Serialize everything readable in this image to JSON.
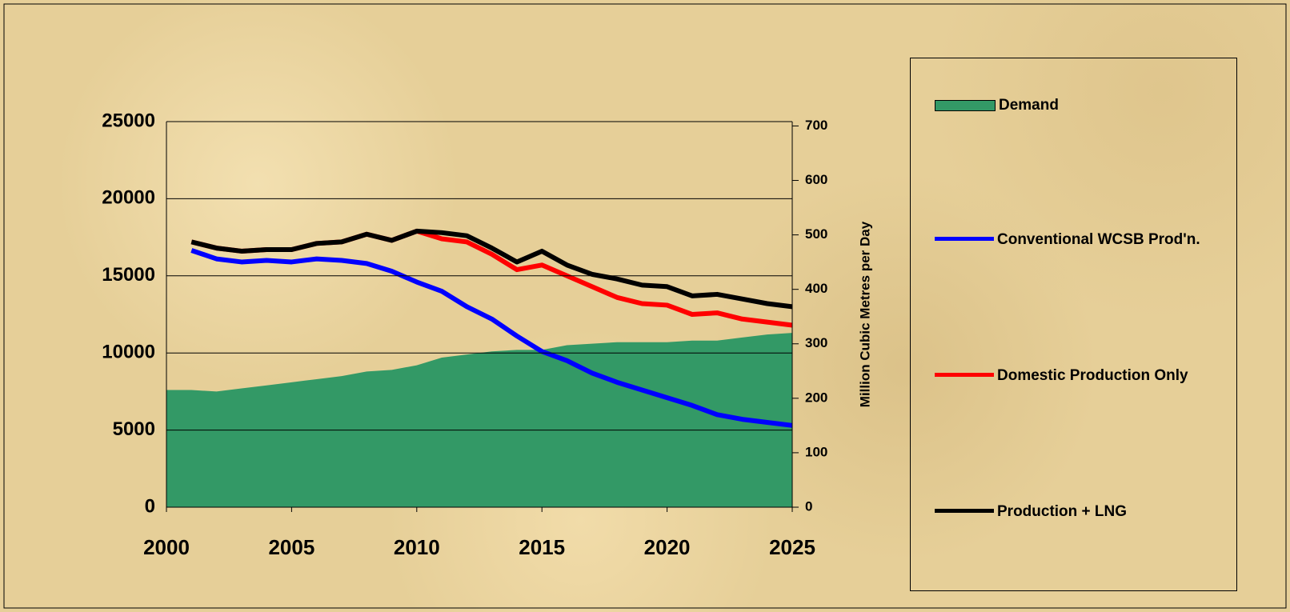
{
  "chart_data": {
    "type": "line",
    "y2_label": "Million Cubic Metres per Day",
    "x": [
      2000,
      2001,
      2002,
      2003,
      2004,
      2005,
      2006,
      2007,
      2008,
      2009,
      2010,
      2011,
      2012,
      2013,
      2014,
      2015,
      2016,
      2017,
      2018,
      2019,
      2020,
      2021,
      2022,
      2023,
      2024,
      2025
    ],
    "xlim": [
      2000,
      2025
    ],
    "xticks": [
      2000,
      2005,
      2010,
      2015,
      2020,
      2025
    ],
    "ylim": [
      0,
      25000
    ],
    "yticks": [
      0,
      5000,
      10000,
      15000,
      20000,
      25000
    ],
    "y2lim": [
      0,
      708
    ],
    "y2ticks": [
      0,
      100,
      200,
      300,
      400,
      500,
      600,
      700
    ],
    "grid": true,
    "legend": "right",
    "series": [
      {
        "name": "Demand",
        "type": "area",
        "color": "#339966",
        "values": [
          7600,
          7600,
          7500,
          7700,
          7900,
          8100,
          8300,
          8500,
          8800,
          8900,
          9200,
          9700,
          9900,
          10100,
          10200,
          10200,
          10500,
          10600,
          10700,
          10700,
          10700,
          10800,
          10800,
          11000,
          11200,
          11300
        ]
      },
      {
        "name": "Conventional WCSB Prod'n.",
        "type": "line",
        "color": "#0000ff",
        "values": [
          null,
          16650,
          16100,
          15900,
          16000,
          15900,
          16100,
          16000,
          15800,
          15300,
          14600,
          14000,
          13000,
          12200,
          11100,
          10100,
          9500,
          8700,
          8100,
          7600,
          7100,
          6600,
          6000,
          5700,
          5500,
          5300
        ]
      },
      {
        "name": "Domestic Production Only",
        "type": "line",
        "color": "#ff0000",
        "values": [
          null,
          17200,
          16800,
          16600,
          16700,
          16700,
          17100,
          17200,
          17700,
          17300,
          17900,
          17400,
          17200,
          16400,
          15400,
          15700,
          15000,
          14300,
          13600,
          13200,
          13100,
          12500,
          12600,
          12200,
          12000,
          11800
        ]
      },
      {
        "name": "Production + LNG",
        "type": "line",
        "color": "#000000",
        "values": [
          null,
          17200,
          16800,
          16600,
          16700,
          16700,
          17100,
          17200,
          17700,
          17300,
          17900,
          17800,
          17600,
          16800,
          15900,
          16600,
          15700,
          15100,
          14800,
          14400,
          14300,
          13700,
          13800,
          13500,
          13200,
          13000
        ]
      }
    ]
  }
}
